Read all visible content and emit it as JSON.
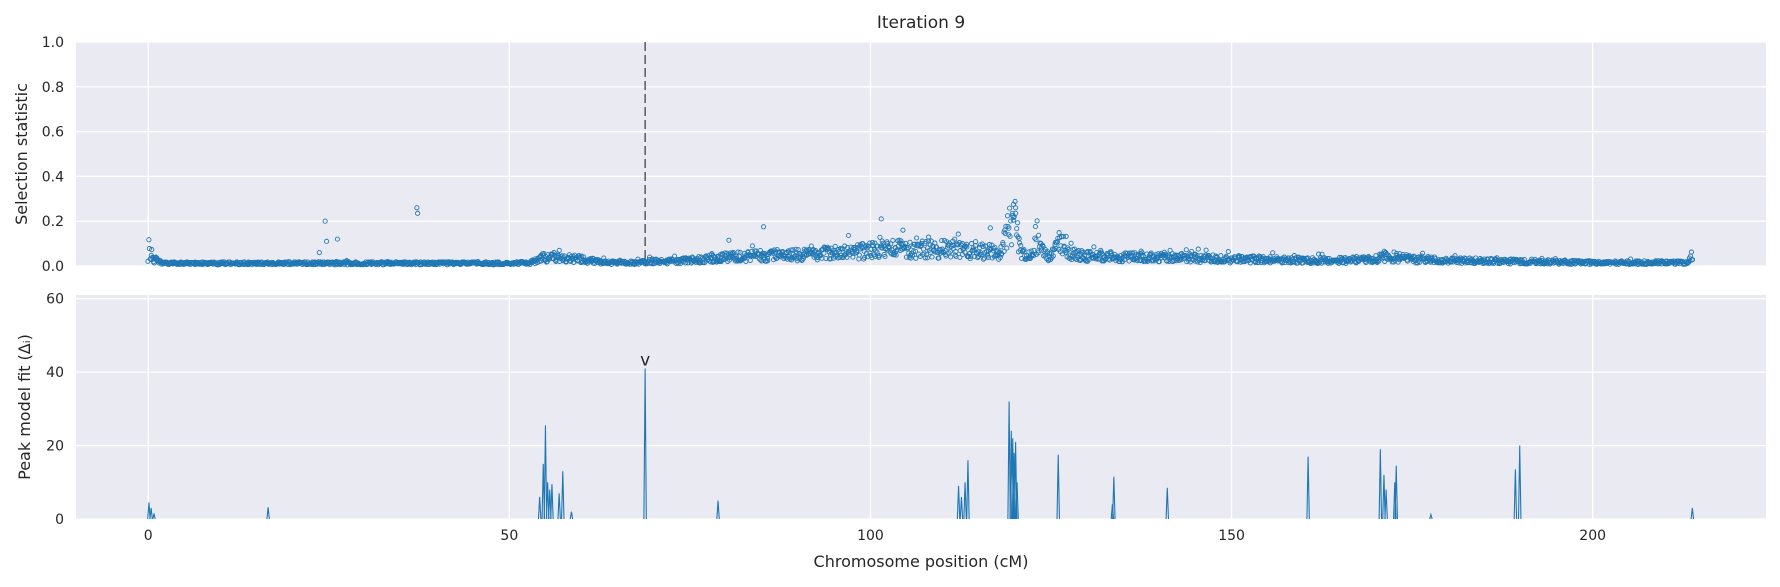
{
  "chart_data": [
    {
      "type": "scatter",
      "title": "Iteration 9",
      "xlabel": "",
      "ylabel": "Selection statistic",
      "xlim": [
        -10,
        224
      ],
      "ylim": [
        0,
        1.0
      ],
      "yticks": [
        "0.0",
        "0.2",
        "0.4",
        "0.6",
        "0.8",
        "1.0"
      ],
      "grid": true,
      "color": "#1f77b4",
      "marker": "open-circle",
      "reference_line_x": 68.8,
      "outliers": [
        [
          24.5,
          0.2
        ],
        [
          24.7,
          0.11
        ],
        [
          26.2,
          0.12
        ],
        [
          37.2,
          0.26
        ],
        [
          37.3,
          0.235
        ],
        [
          23.7,
          0.06
        ],
        [
          80.4,
          0.115
        ],
        [
          85.2,
          0.175
        ],
        [
          101.5,
          0.21
        ],
        [
          104.5,
          0.16
        ],
        [
          116.6,
          0.17
        ],
        [
          119.8,
          0.275
        ],
        [
          120.1,
          0.26
        ]
      ],
      "baseline_profile": {
        "x": [
          0,
          0.3,
          0.8,
          2,
          10,
          30,
          50,
          53,
          54.5,
          56,
          58,
          60,
          62,
          64,
          68,
          70,
          72,
          75,
          80,
          85,
          90,
          95,
          98,
          100,
          103,
          106,
          110,
          113,
          115,
          117,
          118,
          119,
          119.8,
          120.3,
          121,
          122,
          123,
          124,
          125,
          126,
          127,
          128,
          130,
          133,
          135,
          140,
          150,
          160,
          165,
          170,
          171,
          172,
          175,
          180,
          190,
          200,
          210,
          213,
          213.8
        ],
        "y": [
          0.09,
          0.06,
          0.03,
          0.012,
          0.012,
          0.012,
          0.012,
          0.015,
          0.035,
          0.04,
          0.035,
          0.03,
          0.02,
          0.015,
          0.015,
          0.02,
          0.02,
          0.025,
          0.04,
          0.045,
          0.05,
          0.06,
          0.065,
          0.07,
          0.075,
          0.075,
          0.075,
          0.07,
          0.07,
          0.06,
          0.05,
          0.15,
          0.22,
          0.15,
          0.05,
          0.04,
          0.1,
          0.06,
          0.04,
          0.12,
          0.09,
          0.05,
          0.045,
          0.045,
          0.04,
          0.04,
          0.03,
          0.025,
          0.025,
          0.03,
          0.045,
          0.04,
          0.03,
          0.025,
          0.02,
          0.015,
          0.015,
          0.015,
          0.045
        ]
      }
    },
    {
      "type": "line",
      "title": "",
      "xlabel": "Chromosome position (cM)",
      "ylabel": "Peak model fit (Δᵢ)",
      "xlim": [
        -10,
        224
      ],
      "ylim": [
        0,
        61
      ],
      "xticks": [
        0,
        50,
        100,
        150,
        200
      ],
      "yticks": [
        "0",
        "20",
        "40",
        "60"
      ],
      "grid": true,
      "color": "#1f77b4",
      "annotation": {
        "text": "v",
        "x": 68.8,
        "y": 41
      },
      "peaks": [
        [
          0.1,
          4.5
        ],
        [
          0.4,
          3
        ],
        [
          0.8,
          1.5
        ],
        [
          16.6,
          3.2
        ],
        [
          54.2,
          6
        ],
        [
          54.7,
          15
        ],
        [
          55.0,
          25.5
        ],
        [
          55.3,
          10
        ],
        [
          55.6,
          8
        ],
        [
          55.9,
          9.5
        ],
        [
          56.9,
          7
        ],
        [
          57.4,
          13
        ],
        [
          58.6,
          2
        ],
        [
          68.8,
          41
        ],
        [
          78.9,
          5
        ],
        [
          112.2,
          9
        ],
        [
          112.6,
          6
        ],
        [
          113.1,
          10
        ],
        [
          113.5,
          16
        ],
        [
          119.2,
          32
        ],
        [
          119.5,
          24
        ],
        [
          119.7,
          22
        ],
        [
          119.9,
          18
        ],
        [
          120.1,
          21
        ],
        [
          120.3,
          10
        ],
        [
          126.0,
          17.5
        ],
        [
          133.7,
          11.5
        ],
        [
          133.5,
          4
        ],
        [
          141.1,
          8.5
        ],
        [
          160.6,
          17
        ],
        [
          170.6,
          19
        ],
        [
          171.1,
          12
        ],
        [
          171.4,
          8
        ],
        [
          172.8,
          14.5
        ],
        [
          172.6,
          10
        ],
        [
          177.6,
          1.2
        ],
        [
          189.3,
          13.5
        ],
        [
          189.9,
          20
        ],
        [
          213.8,
          3
        ]
      ]
    }
  ]
}
